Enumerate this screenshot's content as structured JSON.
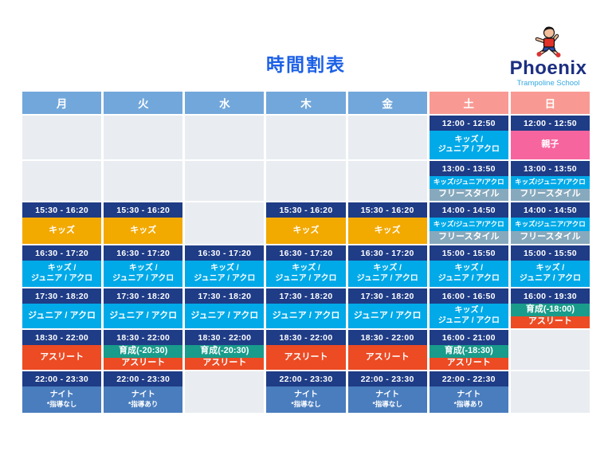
{
  "page": {
    "title": "時間割表"
  },
  "logo": {
    "name": "Phoenix",
    "subtitle": "Trampoline School",
    "mascot": "jumping-boy-mascot"
  },
  "colors": {
    "title_blue": "#1C60E6",
    "header_weekday": "#72A7DB",
    "header_weekend": "#F89A93",
    "time_bar": "#1F3C86",
    "empty_cell": "#E9EDF1",
    "kja": "#00A9E8",
    "kids": "#F2A900",
    "freestyle": "#87A9BD",
    "athlete": "#EC4B24",
    "ikusei": "#199C8B",
    "oyako": "#F7659F",
    "night": "#4A7DBE",
    "brand_navy": "#1C2F82",
    "brand_lightblue": "#35A8E0"
  },
  "table": {
    "columns": [
      {
        "key": "mon",
        "day": "月",
        "weekend": false,
        "cells": [
          {
            "empty": true
          },
          {
            "empty": true
          },
          {
            "time": "15:30 - 16:20",
            "bands": [
              {
                "type": "kids",
                "lines": [
                  "キッズ"
                ]
              }
            ]
          },
          {
            "time": "16:30 - 17:20",
            "bands": [
              {
                "type": "kja",
                "lines": [
                  "キッズ /",
                  "ジュニア / アクロ"
                ]
              }
            ]
          },
          {
            "time": "17:30 - 18:20",
            "bands": [
              {
                "type": "kja",
                "lines": [
                  "ジュニア / アクロ"
                ]
              }
            ]
          },
          {
            "time": "18:30 - 22:00",
            "bands": [
              {
                "type": "athlete",
                "lines": [
                  "アスリート"
                ]
              }
            ]
          },
          {
            "time": "22:00 - 23:30",
            "bands": [
              {
                "type": "night",
                "lines": [
                  "ナイト",
                  "*指導なし"
                ]
              }
            ]
          }
        ]
      },
      {
        "key": "tue",
        "day": "火",
        "weekend": false,
        "cells": [
          {
            "empty": true
          },
          {
            "empty": true
          },
          {
            "time": "15:30 - 16:20",
            "bands": [
              {
                "type": "kids",
                "lines": [
                  "キッズ"
                ]
              }
            ]
          },
          {
            "time": "16:30 - 17:20",
            "bands": [
              {
                "type": "kja",
                "lines": [
                  "キッズ /",
                  "ジュニア / アクロ"
                ]
              }
            ]
          },
          {
            "time": "17:30 - 18:20",
            "bands": [
              {
                "type": "kja",
                "lines": [
                  "ジュニア / アクロ"
                ]
              }
            ]
          },
          {
            "time": "18:30 - 22:00",
            "bands": [
              {
                "type": "ikusei",
                "lines": [
                  "育成(-20:30)"
                ]
              },
              {
                "type": "athlete",
                "lines": [
                  "アスリート"
                ]
              }
            ]
          },
          {
            "time": "22:00 - 23:30",
            "bands": [
              {
                "type": "night",
                "lines": [
                  "ナイト",
                  "*指導あり"
                ]
              }
            ]
          }
        ]
      },
      {
        "key": "wed",
        "day": "水",
        "weekend": false,
        "cells": [
          {
            "empty": true
          },
          {
            "empty": true
          },
          {
            "empty": true
          },
          {
            "time": "16:30 - 17:20",
            "bands": [
              {
                "type": "kja",
                "lines": [
                  "キッズ /",
                  "ジュニア / アクロ"
                ]
              }
            ]
          },
          {
            "time": "17:30 - 18:20",
            "bands": [
              {
                "type": "kja",
                "lines": [
                  "ジュニア / アクロ"
                ]
              }
            ]
          },
          {
            "time": "18:30 - 22:00",
            "bands": [
              {
                "type": "ikusei",
                "lines": [
                  "育成(-20:30)"
                ]
              },
              {
                "type": "athlete",
                "lines": [
                  "アスリート"
                ]
              }
            ]
          },
          {
            "empty": true
          }
        ]
      },
      {
        "key": "thu",
        "day": "木",
        "weekend": false,
        "cells": [
          {
            "empty": true
          },
          {
            "empty": true
          },
          {
            "time": "15:30 - 16:20",
            "bands": [
              {
                "type": "kids",
                "lines": [
                  "キッズ"
                ]
              }
            ]
          },
          {
            "time": "16:30 - 17:20",
            "bands": [
              {
                "type": "kja",
                "lines": [
                  "キッズ /",
                  "ジュニア / アクロ"
                ]
              }
            ]
          },
          {
            "time": "17:30 - 18:20",
            "bands": [
              {
                "type": "kja",
                "lines": [
                  "ジュニア / アクロ"
                ]
              }
            ]
          },
          {
            "time": "18:30 - 22:00",
            "bands": [
              {
                "type": "athlete",
                "lines": [
                  "アスリート"
                ]
              }
            ]
          },
          {
            "time": "22:00 - 23:30",
            "bands": [
              {
                "type": "night",
                "lines": [
                  "ナイト",
                  "*指導なし"
                ]
              }
            ]
          }
        ]
      },
      {
        "key": "fri",
        "day": "金",
        "weekend": false,
        "cells": [
          {
            "empty": true
          },
          {
            "empty": true
          },
          {
            "time": "15:30 - 16:20",
            "bands": [
              {
                "type": "kids",
                "lines": [
                  "キッズ"
                ]
              }
            ]
          },
          {
            "time": "16:30 - 17:20",
            "bands": [
              {
                "type": "kja",
                "lines": [
                  "キッズ /",
                  "ジュニア / アクロ"
                ]
              }
            ]
          },
          {
            "time": "17:30 - 18:20",
            "bands": [
              {
                "type": "kja",
                "lines": [
                  "ジュニア / アクロ"
                ]
              }
            ]
          },
          {
            "time": "18:30 - 22:00",
            "bands": [
              {
                "type": "athlete",
                "lines": [
                  "アスリート"
                ]
              }
            ]
          },
          {
            "time": "22:00 - 23:30",
            "bands": [
              {
                "type": "night",
                "lines": [
                  "ナイト",
                  "*指導なし"
                ]
              }
            ]
          }
        ]
      },
      {
        "key": "sat",
        "day": "土",
        "weekend": true,
        "cells": [
          {
            "time": "12:00 - 12:50",
            "bands": [
              {
                "type": "kja",
                "lines": [
                  "キッズ /",
                  "ジュニア / アクロ"
                ]
              }
            ]
          },
          {
            "time": "13:00 - 13:50",
            "bands": [
              {
                "type": "kja",
                "lines": [
                  "キッズ/ジュニア/アクロ"
                ]
              },
              {
                "type": "freestyle",
                "lines": [
                  "フリースタイル"
                ]
              }
            ]
          },
          {
            "time": "14:00 - 14:50",
            "bands": [
              {
                "type": "kja",
                "lines": [
                  "キッズ/ジュニア/アクロ"
                ]
              },
              {
                "type": "freestyle",
                "lines": [
                  "フリースタイル"
                ]
              }
            ]
          },
          {
            "time": "15:00 - 15:50",
            "bands": [
              {
                "type": "kja",
                "lines": [
                  "キッズ /",
                  "ジュニア / アクロ"
                ]
              }
            ]
          },
          {
            "time": "16:00 - 16:50",
            "bands": [
              {
                "type": "kja",
                "lines": [
                  "キッズ /",
                  "ジュニア / アクロ"
                ]
              }
            ]
          },
          {
            "time": "16:00 - 21:00",
            "bands": [
              {
                "type": "ikusei",
                "lines": [
                  "育成(-18:30)"
                ]
              },
              {
                "type": "athlete",
                "lines": [
                  "アスリート"
                ]
              }
            ]
          },
          {
            "time": "22:00 - 22:30",
            "bands": [
              {
                "type": "night",
                "lines": [
                  "ナイト",
                  "*指導あり"
                ]
              }
            ]
          }
        ]
      },
      {
        "key": "sun",
        "day": "日",
        "weekend": true,
        "cells": [
          {
            "time": "12:00 - 12:50",
            "bands": [
              {
                "type": "oyako",
                "lines": [
                  "親子"
                ]
              }
            ]
          },
          {
            "time": "13:00 - 13:50",
            "bands": [
              {
                "type": "kja",
                "lines": [
                  "キッズ/ジュニア/アクロ"
                ]
              },
              {
                "type": "freestyle",
                "lines": [
                  "フリースタイル"
                ]
              }
            ]
          },
          {
            "time": "14:00 - 14:50",
            "bands": [
              {
                "type": "kja",
                "lines": [
                  "キッズ/ジュニア/アクロ"
                ]
              },
              {
                "type": "freestyle",
                "lines": [
                  "フリースタイル"
                ]
              }
            ]
          },
          {
            "time": "15:00 - 15:50",
            "bands": [
              {
                "type": "kja",
                "lines": [
                  "キッズ /",
                  "ジュニア / アクロ"
                ]
              }
            ]
          },
          {
            "time": "16:00 - 19:30",
            "bands": [
              {
                "type": "ikusei",
                "lines": [
                  "育成(-18:00)"
                ]
              },
              {
                "type": "athlete",
                "lines": [
                  "アスリート"
                ]
              }
            ]
          },
          {
            "empty": true
          },
          {
            "empty": true
          }
        ]
      }
    ]
  }
}
